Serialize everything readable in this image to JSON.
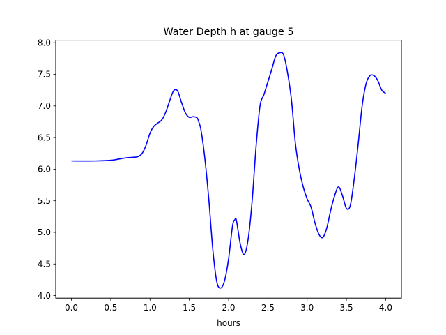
{
  "chart_data": {
    "type": "line",
    "title": "Water Depth h at gauge 5",
    "xlabel": "hours",
    "ylabel": "",
    "xlim": [
      -0.2,
      4.2
    ],
    "ylim": [
      3.96,
      8.04
    ],
    "xticks": [
      "0.0",
      "0.5",
      "1.0",
      "1.5",
      "2.0",
      "2.5",
      "3.0",
      "3.5",
      "4.0"
    ],
    "yticks": [
      "4.0",
      "4.5",
      "5.0",
      "5.5",
      "6.0",
      "6.5",
      "7.0",
      "7.5",
      "8.0"
    ],
    "grid": false,
    "legend": "none",
    "series": [
      {
        "color": "#0000ff",
        "x": [
          0.0,
          0.3,
          0.5,
          0.6,
          0.7,
          0.8,
          0.85,
          0.9,
          0.95,
          1.0,
          1.05,
          1.1,
          1.15,
          1.2,
          1.25,
          1.3,
          1.35,
          1.4,
          1.45,
          1.5,
          1.55,
          1.6,
          1.62,
          1.65,
          1.7,
          1.75,
          1.8,
          1.85,
          1.9,
          1.95,
          2.0,
          2.05,
          2.08,
          2.1,
          2.15,
          2.2,
          2.25,
          2.3,
          2.35,
          2.4,
          2.45,
          2.5,
          2.55,
          2.6,
          2.65,
          2.7,
          2.75,
          2.8,
          2.85,
          2.9,
          2.95,
          3.0,
          3.05,
          3.1,
          3.15,
          3.2,
          3.25,
          3.3,
          3.35,
          3.4,
          3.45,
          3.5,
          3.55,
          3.6,
          3.65,
          3.7,
          3.75,
          3.8,
          3.85,
          3.9,
          3.95,
          4.0
        ],
        "y": [
          6.13,
          6.13,
          6.14,
          6.16,
          6.18,
          6.19,
          6.2,
          6.25,
          6.38,
          6.57,
          6.68,
          6.73,
          6.78,
          6.9,
          7.08,
          7.24,
          7.24,
          7.06,
          6.89,
          6.82,
          6.83,
          6.81,
          6.75,
          6.61,
          6.15,
          5.5,
          4.72,
          4.22,
          4.12,
          4.24,
          4.58,
          5.1,
          5.2,
          5.19,
          4.81,
          4.65,
          4.9,
          5.5,
          6.36,
          7.0,
          7.18,
          7.38,
          7.58,
          7.79,
          7.84,
          7.81,
          7.53,
          7.1,
          6.41,
          6.0,
          5.72,
          5.53,
          5.4,
          5.15,
          4.97,
          4.92,
          5.07,
          5.35,
          5.58,
          5.72,
          5.58,
          5.38,
          5.43,
          5.85,
          6.4,
          7.0,
          7.35,
          7.48,
          7.48,
          7.4,
          7.25,
          7.2
        ]
      }
    ]
  }
}
